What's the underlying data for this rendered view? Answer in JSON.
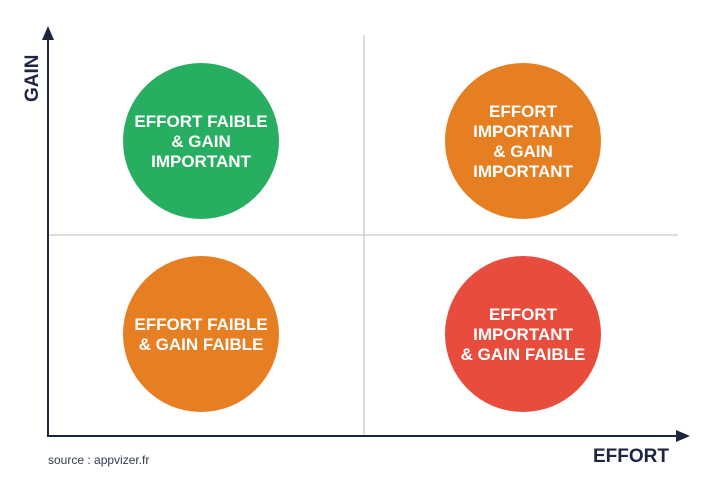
{
  "axes": {
    "x_label": "EFFORT",
    "y_label": "GAIN",
    "color": "#1e2540"
  },
  "source": "source : appvizer.fr",
  "quadrants": [
    {
      "id": "low-effort-high-gain",
      "lines": [
        "EFFORT FAIBLE",
        "& GAIN",
        "IMPORTANT"
      ],
      "color": "#27ae60"
    },
    {
      "id": "high-effort-high-gain",
      "lines": [
        "EFFORT",
        "IMPORTANT",
        "& GAIN",
        "IMPORTANT"
      ],
      "color": "#e67e22"
    },
    {
      "id": "low-effort-low-gain",
      "lines": [
        "EFFORT FAIBLE",
        "& GAIN FAIBLE"
      ],
      "color": "#e67e22"
    },
    {
      "id": "high-effort-low-gain",
      "lines": [
        "EFFORT",
        "IMPORTANT",
        "& GAIN FAIBLE"
      ],
      "color": "#e74c3c"
    }
  ]
}
